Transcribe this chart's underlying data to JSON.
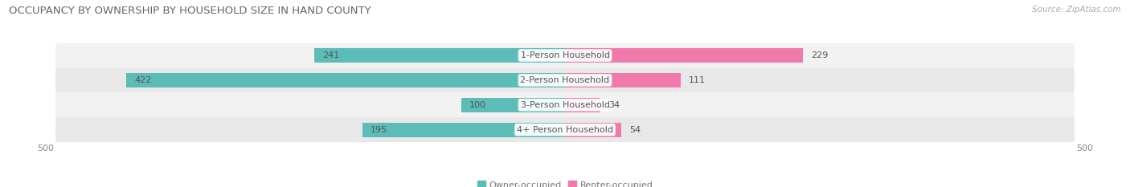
{
  "title": "OCCUPANCY BY OWNERSHIP BY HOUSEHOLD SIZE IN HAND COUNTY",
  "source": "Source: ZipAtlas.com",
  "categories": [
    "1-Person Household",
    "2-Person Household",
    "3-Person Household",
    "4+ Person Household"
  ],
  "owner_values": [
    241,
    422,
    100,
    195
  ],
  "renter_values": [
    229,
    111,
    34,
    54
  ],
  "owner_color": "#5bbcb8",
  "renter_color": "#f07aab",
  "axis_max": 500,
  "bar_height": 0.58,
  "title_fontsize": 9.5,
  "label_fontsize": 8.0,
  "tick_fontsize": 8.0,
  "legend_fontsize": 8.0,
  "source_fontsize": 7.5,
  "row_colors": [
    "#f2f2f2",
    "#e8e8e8"
  ]
}
